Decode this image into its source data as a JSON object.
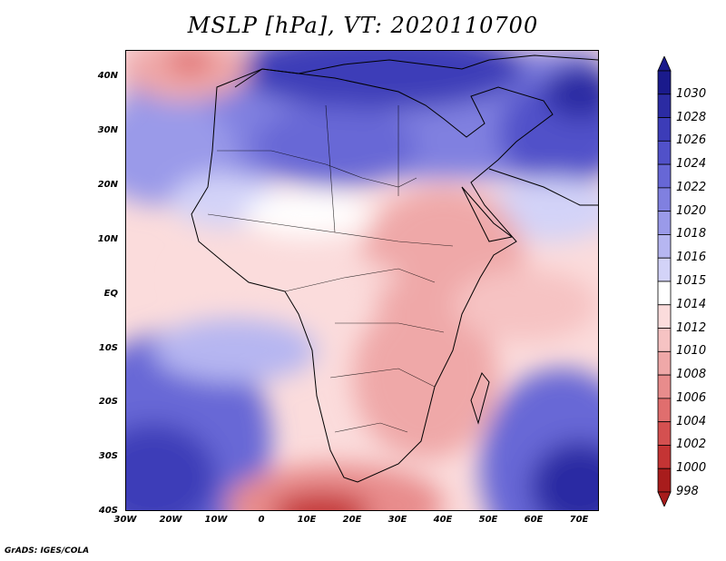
{
  "title": "MSLP [hPa], VT: 2020110700",
  "map": {
    "lat_ticks": [
      "40N",
      "30N",
      "20N",
      "10N",
      "EQ",
      "10S",
      "20S",
      "30S",
      "40S"
    ],
    "lon_ticks": [
      "30W",
      "20W",
      "10W",
      "0",
      "10E",
      "20E",
      "30E",
      "40E",
      "50E",
      "60E",
      "70E"
    ],
    "extent": {
      "lon": [
        -30,
        75
      ],
      "lat": [
        -40,
        45
      ]
    }
  },
  "colorbar": {
    "levels": [
      "1030",
      "1028",
      "1026",
      "1024",
      "1022",
      "1020",
      "1018",
      "1016",
      "1015",
      "1014",
      "1012",
      "1010",
      "1008",
      "1006",
      "1004",
      "1002",
      "1000",
      "998"
    ],
    "colors": [
      "#1a1a8c",
      "#2b2ba3",
      "#3c3cb8",
      "#5151c9",
      "#6767d6",
      "#8080e0",
      "#9a9ae9",
      "#b6b6f1",
      "#d3d3f8",
      "#ffffff",
      "#fbdcdc",
      "#f6c3c3",
      "#efa8a8",
      "#e88c8c",
      "#e06e6e",
      "#d45050",
      "#c43434",
      "#a81c1c"
    ]
  },
  "credit": "GrADS: IGES/COLA"
}
